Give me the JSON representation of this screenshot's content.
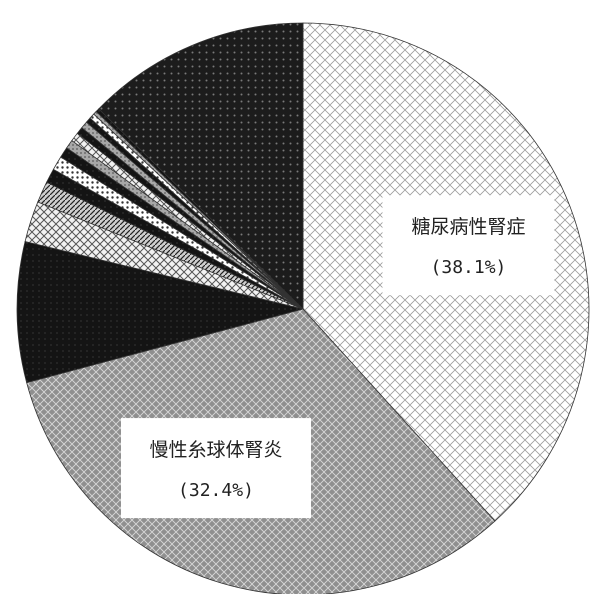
{
  "chart_data": {
    "type": "pie",
    "title": "",
    "start_angle_deg": 0,
    "direction": "clockwise",
    "slices": [
      {
        "label": "糖尿病性腎症",
        "value": 38.1,
        "pct_text": "(38.1%)",
        "pattern": "diamond-light"
      },
      {
        "label": "慢性糸球体腎炎",
        "value": 32.4,
        "pct_text": "(32.4%)",
        "pattern": "diamond-dense"
      },
      {
        "label": "",
        "value": 7.9,
        "pct_text": "",
        "pattern": "solid-dark"
      },
      {
        "label": "",
        "value": 2.3,
        "pct_text": "",
        "pattern": "cross-light"
      },
      {
        "label": "",
        "value": 1.2,
        "pct_text": "",
        "pattern": "diag-stripe"
      },
      {
        "label": "",
        "value": 0.8,
        "pct_text": "",
        "pattern": "solid-dark"
      },
      {
        "label": "",
        "value": 0.8,
        "pct_text": "",
        "pattern": "dots"
      },
      {
        "label": "",
        "value": 0.6,
        "pct_text": "",
        "pattern": "solid-dark"
      },
      {
        "label": "",
        "value": 0.5,
        "pct_text": "",
        "pattern": "grey"
      },
      {
        "label": "",
        "value": 0.5,
        "pct_text": "",
        "pattern": "cross-light"
      },
      {
        "label": "",
        "value": 0.4,
        "pct_text": "",
        "pattern": "solid-dark"
      },
      {
        "label": "",
        "value": 0.4,
        "pct_text": "",
        "pattern": "grey"
      },
      {
        "label": "",
        "value": 0.3,
        "pct_text": "",
        "pattern": "solid-dark"
      },
      {
        "label": "",
        "value": 0.3,
        "pct_text": "",
        "pattern": "dots"
      },
      {
        "label": "",
        "value": 0.2,
        "pct_text": "",
        "pattern": "grey"
      },
      {
        "label": "",
        "value": 0.2,
        "pct_text": "",
        "pattern": "solid-dark"
      },
      {
        "label": "",
        "value": 12.6,
        "pct_text": "",
        "pattern": "dark-dots"
      }
    ]
  }
}
